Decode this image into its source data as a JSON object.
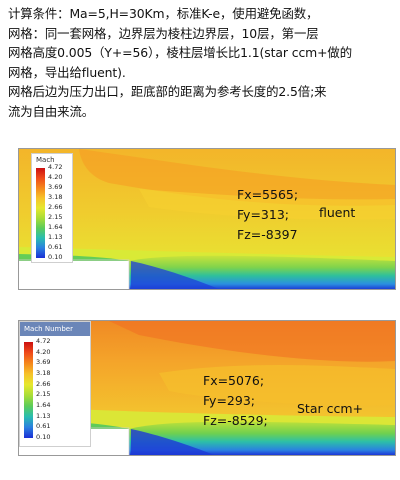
{
  "description": {
    "lines": [
      "计算条件：Ma=5,H=30Km，标准K-e，使用避免函数，",
      "网格：同一套网格，边界层为棱柱边界层，10层，第一层",
      "网格高度0.005（Y+=56），棱柱层增长比1.1(star ccm+做的",
      "网格，导出给fluent).",
      "网格后边为压力出口，距底部的距离为参考长度的2.5倍;来",
      "流为自由来流。"
    ]
  },
  "panels": [
    {
      "legend_title": "Mach",
      "legend_values": [
        "4.72",
        "4.20",
        "3.69",
        "3.18",
        "2.66",
        "2.15",
        "1.64",
        "1.13",
        "0.61",
        "0.10"
      ],
      "forces": [
        "Fx=5565;",
        "Fy=313;",
        "Fz=-8397"
      ],
      "solver_label": "fluent"
    },
    {
      "legend_title": "Mach Number",
      "legend_values": [
        "4.72",
        "4.20",
        "3.69",
        "3.18",
        "2.66",
        "2.15",
        "1.64",
        "1.13",
        "0.61",
        "0.10"
      ],
      "forces": [
        "Fx=5076;",
        "Fy=293;",
        "Fz=-8529;"
      ],
      "solver_label": "Star ccm+"
    }
  ],
  "colormap": [
    "#cc1010",
    "#ef4a1a",
    "#f5881c",
    "#f6c22a",
    "#e6e82e",
    "#a9dd37",
    "#5ccc59",
    "#29bdb0",
    "#2a7fe0",
    "#1b2fd6"
  ]
}
